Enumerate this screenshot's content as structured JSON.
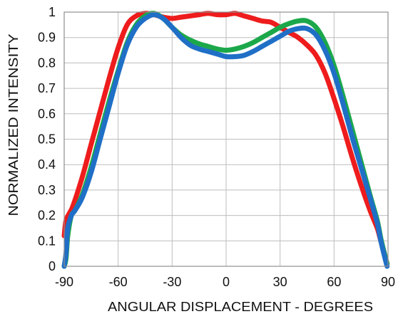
{
  "chart_data": {
    "type": "line",
    "xlabel": "ANGULAR DISPLACEMENT - DEGREES",
    "ylabel": "NORMALIZED INTENSITY",
    "xlim": [
      -90,
      90
    ],
    "ylim": [
      0,
      1
    ],
    "xticks": [
      -90,
      -60,
      -30,
      0,
      30,
      60,
      90
    ],
    "yticks": [
      0,
      0.1,
      0.2,
      0.3,
      0.4,
      0.5,
      0.6,
      0.7,
      0.8,
      0.9,
      1
    ],
    "grid": true,
    "colors": {
      "red": "#ee1c1c",
      "green": "#1ba84a",
      "blue": "#1f6fc6"
    },
    "series": [
      {
        "color": "red",
        "x": [
          -90,
          -89,
          -87,
          -85,
          -80,
          -75,
          -70,
          -65,
          -60,
          -55,
          -50,
          -45,
          -40,
          -35,
          -30,
          -25,
          -20,
          -15,
          -10,
          -5,
          0,
          5,
          10,
          15,
          20,
          25,
          30,
          35,
          40,
          45,
          50,
          55,
          60,
          65,
          70,
          75,
          80,
          84,
          86,
          88,
          89.5
        ],
        "y": [
          0.12,
          0.18,
          0.21,
          0.24,
          0.35,
          0.48,
          0.61,
          0.74,
          0.86,
          0.95,
          0.985,
          0.995,
          0.99,
          0.98,
          0.975,
          0.98,
          0.985,
          0.99,
          0.995,
          0.99,
          0.99,
          0.995,
          0.985,
          0.975,
          0.965,
          0.96,
          0.94,
          0.92,
          0.9,
          0.87,
          0.83,
          0.76,
          0.66,
          0.55,
          0.43,
          0.32,
          0.22,
          0.15,
          0.1,
          0.05,
          0.01
        ]
      },
      {
        "color": "green",
        "x": [
          -90,
          -89,
          -88,
          -86,
          -84,
          -80,
          -75,
          -70,
          -65,
          -60,
          -55,
          -50,
          -45,
          -40,
          -35,
          -30,
          -25,
          -20,
          -15,
          -10,
          -5,
          0,
          5,
          10,
          15,
          20,
          25,
          30,
          35,
          40,
          45,
          50,
          55,
          60,
          65,
          70,
          75,
          80,
          84,
          86,
          88,
          89.5
        ],
        "y": [
          0.0,
          0.03,
          0.12,
          0.2,
          0.22,
          0.28,
          0.39,
          0.52,
          0.65,
          0.77,
          0.88,
          0.95,
          0.985,
          0.995,
          0.975,
          0.94,
          0.91,
          0.89,
          0.875,
          0.865,
          0.855,
          0.85,
          0.855,
          0.865,
          0.88,
          0.9,
          0.92,
          0.94,
          0.955,
          0.965,
          0.965,
          0.94,
          0.88,
          0.79,
          0.67,
          0.54,
          0.41,
          0.28,
          0.18,
          0.11,
          0.05,
          0.01
        ]
      },
      {
        "color": "blue",
        "x": [
          -90,
          -89,
          -88,
          -86,
          -84,
          -80,
          -75,
          -70,
          -65,
          -60,
          -55,
          -50,
          -45,
          -40,
          -35,
          -30,
          -25,
          -20,
          -15,
          -10,
          -5,
          0,
          5,
          10,
          15,
          20,
          25,
          30,
          35,
          40,
          45,
          50,
          55,
          60,
          65,
          70,
          75,
          80,
          84,
          86,
          88,
          89.5
        ],
        "y": [
          0.0,
          0.05,
          0.15,
          0.2,
          0.22,
          0.27,
          0.37,
          0.5,
          0.63,
          0.76,
          0.87,
          0.94,
          0.975,
          0.99,
          0.975,
          0.94,
          0.9,
          0.87,
          0.855,
          0.845,
          0.835,
          0.825,
          0.825,
          0.83,
          0.845,
          0.865,
          0.885,
          0.905,
          0.925,
          0.935,
          0.935,
          0.91,
          0.85,
          0.76,
          0.64,
          0.51,
          0.39,
          0.27,
          0.17,
          0.1,
          0.04,
          0.0
        ]
      }
    ]
  }
}
